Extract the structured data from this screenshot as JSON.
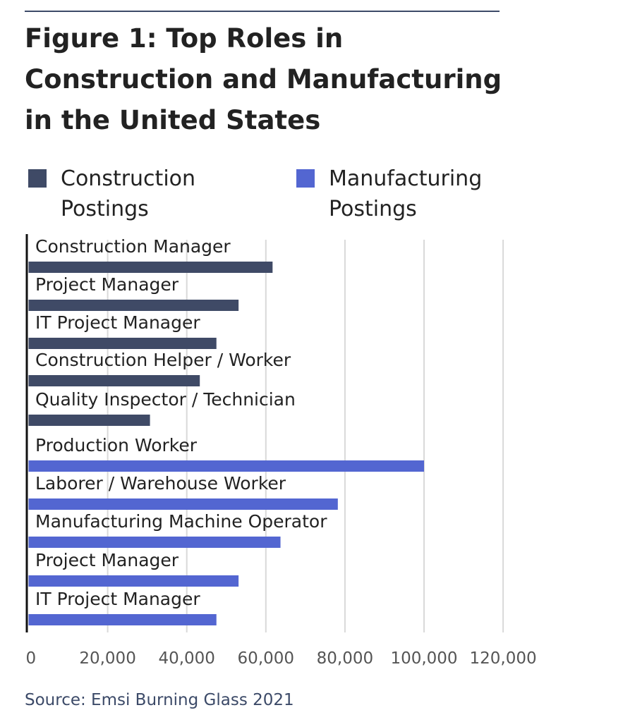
{
  "title": "Figure 1: Top Roles in Construction and Manufacturing in the United States",
  "source": "Source: Emsi Burning Glass 2021",
  "colors": {
    "construction": "#3f4a66",
    "manufacturing": "#5366d1",
    "grid": "#d9d9d9",
    "axis": "#111111"
  },
  "chart_data": {
    "type": "bar",
    "orientation": "horizontal",
    "title": "Figure 1: Top Roles in Construction and Manufacturing in the United States",
    "xlim": [
      0,
      120000
    ],
    "xticks": [
      0,
      20000,
      40000,
      60000,
      80000,
      100000,
      120000
    ],
    "xtick_labels": [
      "0",
      "20,000",
      "40,000",
      "60,000",
      "80,000",
      "100,000",
      "120,000"
    ],
    "grid": "vertical",
    "legend_placement": "top",
    "legend": [
      {
        "name": "Construction Postings",
        "color": "#3f4a66"
      },
      {
        "name": "Manufacturing Postings",
        "color": "#5366d1"
      }
    ],
    "bars": [
      {
        "label": "Construction Manager",
        "value": 61700,
        "series": "Construction Postings"
      },
      {
        "label": "Project Manager",
        "value": 53100,
        "series": "Construction Postings"
      },
      {
        "label": "IT Project Manager",
        "value": 47500,
        "series": "Construction Postings"
      },
      {
        "label": "Construction Helper / Worker",
        "value": 43300,
        "series": "Construction Postings"
      },
      {
        "label": "Quality Inspector / Technician",
        "value": 30700,
        "series": "Construction Postings"
      },
      {
        "label": "Production Worker",
        "value": 100000,
        "series": "Manufacturing Postings"
      },
      {
        "label": "Laborer / Warehouse Worker",
        "value": 78200,
        "series": "Manufacturing Postings"
      },
      {
        "label": "Manufacturing Machine Operator",
        "value": 63700,
        "series": "Manufacturing Postings"
      },
      {
        "label": "Project Manager",
        "value": 53100,
        "series": "Manufacturing Postings"
      },
      {
        "label": "IT Project Manager",
        "value": 47500,
        "series": "Manufacturing Postings"
      }
    ]
  }
}
